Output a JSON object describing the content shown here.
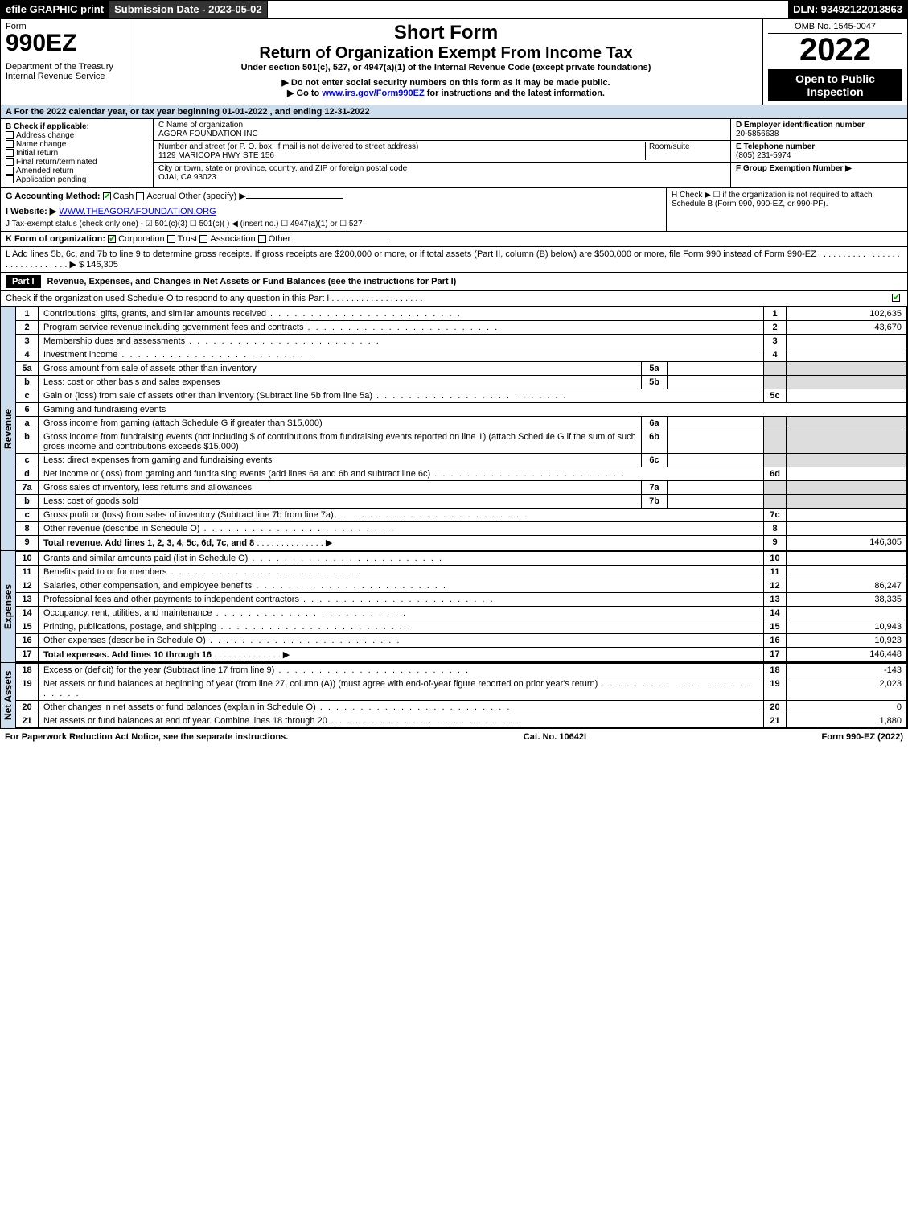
{
  "topbar": {
    "efile": "efile GRAPHIC print",
    "subdate": "Submission Date - 2023-05-02",
    "dln": "DLN: 93492122013863"
  },
  "header": {
    "form_word": "Form",
    "form_num": "990EZ",
    "dept": "Department of the Treasury\nInternal Revenue Service",
    "title": "Short Form",
    "subtitle": "Return of Organization Exempt From Income Tax",
    "under": "Under section 501(c), 527, or 4947(a)(1) of the Internal Revenue Code (except private foundations)",
    "warn1": "▶ Do not enter social security numbers on this form as it may be made public.",
    "warn2": "▶ Go to www.irs.gov/Form990EZ for instructions and the latest information.",
    "omb": "OMB No. 1545-0047",
    "year": "2022",
    "badge": "Open to Public Inspection"
  },
  "sectionA": "A  For the 2022 calendar year, or tax year beginning 01-01-2022 , and ending 12-31-2022",
  "colB": {
    "title": "B  Check if applicable:",
    "opts": [
      "Address change",
      "Name change",
      "Initial return",
      "Final return/terminated",
      "Amended return",
      "Application pending"
    ]
  },
  "colC": {
    "name_label": "C Name of organization",
    "name": "AGORA FOUNDATION INC",
    "addr_label": "Number and street (or P. O. box, if mail is not delivered to street address)",
    "room_label": "Room/suite",
    "addr": "1129 MARICOPA HWY STE 156",
    "city_label": "City or town, state or province, country, and ZIP or foreign postal code",
    "city": "OJAI, CA  93023"
  },
  "colDE": {
    "d_label": "D Employer identification number",
    "d": "20-5856638",
    "e_label": "E Telephone number",
    "e": "(805) 231-5974",
    "f_label": "F Group Exemption Number ▶"
  },
  "rowG": {
    "label": "G Accounting Method:",
    "cash": "Cash",
    "accrual": "Accrual",
    "other": "Other (specify) ▶"
  },
  "rowH": "H  Check ▶  ☐  if the organization is not required to attach Schedule B (Form 990, 990-EZ, or 990-PF).",
  "rowI": {
    "label": "I Website: ▶",
    "value": "WWW.THEAGORAFOUNDATION.ORG"
  },
  "rowJ": "J Tax-exempt status (check only one) - ☑ 501(c)(3) ☐ 501(c)(  ) ◀ (insert no.) ☐ 4947(a)(1) or ☐ 527",
  "rowK": {
    "label": "K Form of organization:",
    "corp": "Corporation",
    "trust": "Trust",
    "assoc": "Association",
    "other": "Other"
  },
  "rowL": "L Add lines 5b, 6c, and 7b to line 9 to determine gross receipts. If gross receipts are $200,000 or more, or if total assets (Part II, column (B) below) are $500,000 or more, file Form 990 instead of Form 990-EZ . . . . . . . . . . . . . . . . . . . . . . . . . . . . . . ▶ $ 146,305",
  "part1": {
    "header": "Part I",
    "title": "Revenue, Expenses, and Changes in Net Assets or Fund Balances (see the instructions for Part I)",
    "checknote": "Check if the organization used Schedule O to respond to any question in this Part I . . . . . . . . . . . . . . . . . . .",
    "checked": true
  },
  "sides": {
    "revenue": "Revenue",
    "expenses": "Expenses",
    "netassets": "Net Assets"
  },
  "revenue": [
    {
      "ln": "1",
      "text": "Contributions, gifts, grants, and similar amounts received",
      "rn": "1",
      "amt": "102,635"
    },
    {
      "ln": "2",
      "text": "Program service revenue including government fees and contracts",
      "rn": "2",
      "amt": "43,670"
    },
    {
      "ln": "3",
      "text": "Membership dues and assessments",
      "rn": "3",
      "amt": ""
    },
    {
      "ln": "4",
      "text": "Investment income",
      "rn": "4",
      "amt": ""
    },
    {
      "ln": "5a",
      "text": "Gross amount from sale of assets other than inventory",
      "sub": "5a",
      "subamt": ""
    },
    {
      "ln": "b",
      "text": "Less: cost or other basis and sales expenses",
      "sub": "5b",
      "subamt": ""
    },
    {
      "ln": "c",
      "text": "Gain or (loss) from sale of assets other than inventory (Subtract line 5b from line 5a)",
      "rn": "5c",
      "amt": ""
    },
    {
      "ln": "6",
      "text": "Gaming and fundraising events"
    },
    {
      "ln": "a",
      "text": "Gross income from gaming (attach Schedule G if greater than $15,000)",
      "sub": "6a",
      "subamt": ""
    },
    {
      "ln": "b",
      "text": "Gross income from fundraising events (not including $                   of contributions from fundraising events reported on line 1) (attach Schedule G if the sum of such gross income and contributions exceeds $15,000)",
      "sub": "6b",
      "subamt": ""
    },
    {
      "ln": "c",
      "text": "Less: direct expenses from gaming and fundraising events",
      "sub": "6c",
      "subamt": ""
    },
    {
      "ln": "d",
      "text": "Net income or (loss) from gaming and fundraising events (add lines 6a and 6b and subtract line 6c)",
      "rn": "6d",
      "amt": ""
    },
    {
      "ln": "7a",
      "text": "Gross sales of inventory, less returns and allowances",
      "sub": "7a",
      "subamt": ""
    },
    {
      "ln": "b",
      "text": "Less: cost of goods sold",
      "sub": "7b",
      "subamt": ""
    },
    {
      "ln": "c",
      "text": "Gross profit or (loss) from sales of inventory (Subtract line 7b from line 7a)",
      "rn": "7c",
      "amt": ""
    },
    {
      "ln": "8",
      "text": "Other revenue (describe in Schedule O)",
      "rn": "8",
      "amt": ""
    },
    {
      "ln": "9",
      "text": "Total revenue. Add lines 1, 2, 3, 4, 5c, 6d, 7c, and 8",
      "rn": "9",
      "amt": "146,305",
      "bold": true,
      "arrow": true
    }
  ],
  "expenses": [
    {
      "ln": "10",
      "text": "Grants and similar amounts paid (list in Schedule O)",
      "rn": "10",
      "amt": ""
    },
    {
      "ln": "11",
      "text": "Benefits paid to or for members",
      "rn": "11",
      "amt": ""
    },
    {
      "ln": "12",
      "text": "Salaries, other compensation, and employee benefits",
      "rn": "12",
      "amt": "86,247"
    },
    {
      "ln": "13",
      "text": "Professional fees and other payments to independent contractors",
      "rn": "13",
      "amt": "38,335"
    },
    {
      "ln": "14",
      "text": "Occupancy, rent, utilities, and maintenance",
      "rn": "14",
      "amt": ""
    },
    {
      "ln": "15",
      "text": "Printing, publications, postage, and shipping",
      "rn": "15",
      "amt": "10,943"
    },
    {
      "ln": "16",
      "text": "Other expenses (describe in Schedule O)",
      "rn": "16",
      "amt": "10,923"
    },
    {
      "ln": "17",
      "text": "Total expenses. Add lines 10 through 16",
      "rn": "17",
      "amt": "146,448",
      "bold": true,
      "arrow": true
    }
  ],
  "netassets": [
    {
      "ln": "18",
      "text": "Excess or (deficit) for the year (Subtract line 17 from line 9)",
      "rn": "18",
      "amt": "-143"
    },
    {
      "ln": "19",
      "text": "Net assets or fund balances at beginning of year (from line 27, column (A)) (must agree with end-of-year figure reported on prior year's return)",
      "rn": "19",
      "amt": "2,023"
    },
    {
      "ln": "20",
      "text": "Other changes in net assets or fund balances (explain in Schedule O)",
      "rn": "20",
      "amt": "0"
    },
    {
      "ln": "21",
      "text": "Net assets or fund balances at end of year. Combine lines 18 through 20",
      "rn": "21",
      "amt": "1,880"
    }
  ],
  "footer": {
    "left": "For Paperwork Reduction Act Notice, see the separate instructions.",
    "mid": "Cat. No. 10642I",
    "right": "Form 990-EZ (2022)"
  }
}
